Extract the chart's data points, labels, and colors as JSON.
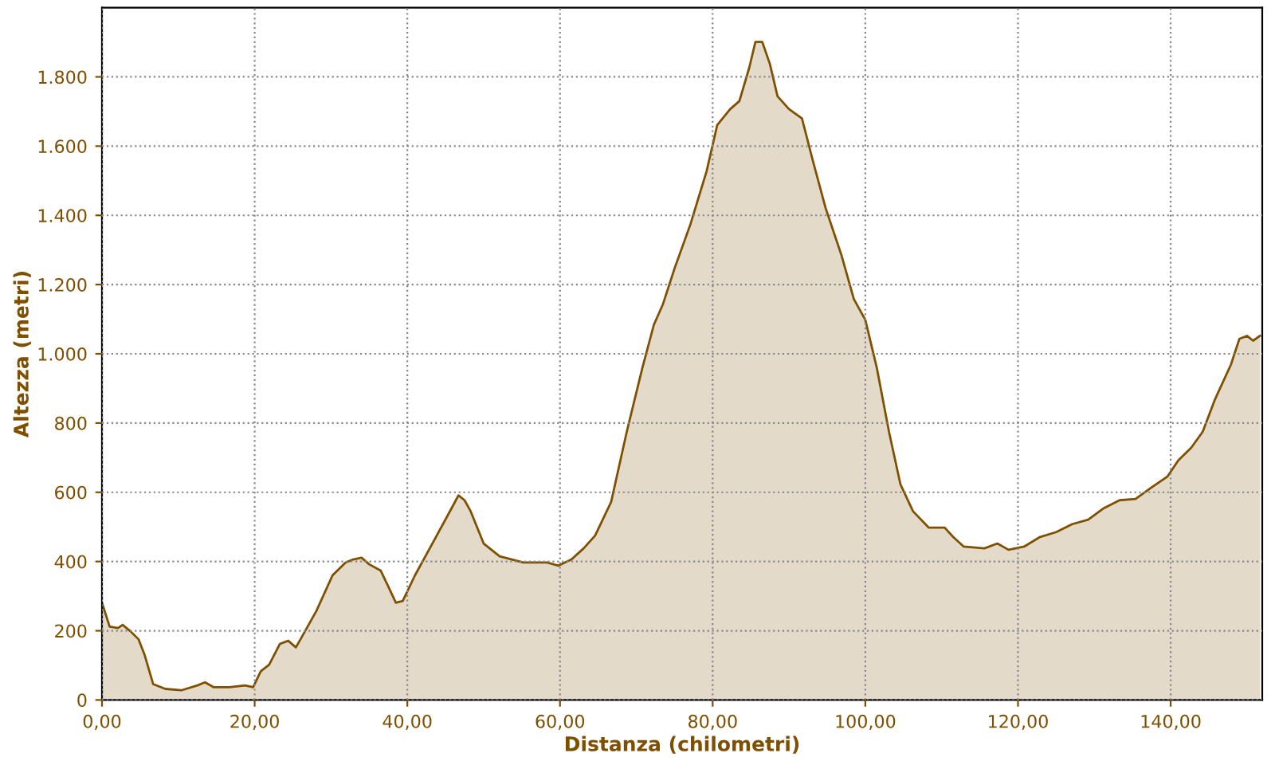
{
  "chart_data": {
    "type": "area",
    "xlabel": "Distanza (chilometri)",
    "ylabel": "Altezza (metri)",
    "x": [
      0,
      1.0,
      2.1,
      2.7,
      3.75,
      4.8,
      5.6,
      6.7,
      8.3,
      10.4,
      12.5,
      13.5,
      14.6,
      16.7,
      18.75,
      19.8,
      20.8,
      21.9,
      23.3,
      24.4,
      25.4,
      26,
      28.1,
      30.2,
      31.9,
      32.9,
      34,
      35,
      36.5,
      37.5,
      38.5,
      39.4,
      41,
      43.75,
      45.8,
      46.7,
      47.5,
      48.3,
      50,
      52.1,
      55.2,
      58.3,
      59.8,
      61.5,
      63.1,
      64.6,
      66.7,
      68.75,
      70.8,
      72.3,
      73.5,
      75,
      77.1,
      79.2,
      80.6,
      82.3,
      83.5,
      84.8,
      85.6,
      86.5,
      87.5,
      88.5,
      90,
      91.7,
      93.1,
      94.8,
      96.9,
      98.5,
      100,
      101.5,
      103.1,
      104.6,
      106.25,
      108.3,
      110.4,
      111.5,
      112.9,
      115.6,
      117.3,
      118.75,
      120.8,
      122.9,
      125,
      127.1,
      129.2,
      131.25,
      133.3,
      135.4,
      137.5,
      139.6,
      141,
      142.7,
      144.2,
      145.8,
      147.9,
      149,
      150,
      150.8,
      151.7
    ],
    "series": [
      {
        "color": "#7f5000",
        "values": [
          281,
          212,
          208,
          217,
          198,
          175,
          129,
          46,
          32,
          28,
          42,
          51,
          37,
          37,
          42,
          37,
          83,
          102,
          162,
          171,
          152,
          175,
          258,
          360,
          397,
          406,
          411,
          392,
          374,
          328,
          281,
          286,
          360,
          471,
          554,
          591,
          577,
          545,
          452,
          415,
          397,
          397,
          388,
          406,
          438,
          475,
          572,
          775,
          960,
          1084,
          1144,
          1246,
          1375,
          1527,
          1661,
          1707,
          1730,
          1827,
          1901,
          1901,
          1837,
          1744,
          1707,
          1680,
          1560,
          1421,
          1283,
          1158,
          1098,
          960,
          775,
          623,
          545,
          498,
          498,
          471,
          443,
          438,
          452,
          434,
          443,
          471,
          485,
          508,
          521,
          554,
          577,
          581,
          614,
          646,
          692,
          729,
          775,
          868,
          969,
          1043,
          1052,
          1038,
          1052
        ]
      }
    ],
    "xlim": [
      0,
      152
    ],
    "ylim": [
      0,
      2000
    ],
    "xticks": [
      {
        "value": 0,
        "label": "0,00"
      },
      {
        "value": 20,
        "label": "20,00"
      },
      {
        "value": 40,
        "label": "40,00"
      },
      {
        "value": 60,
        "label": "60,00"
      },
      {
        "value": 80,
        "label": "80,00"
      },
      {
        "value": 100,
        "label": "100,00"
      },
      {
        "value": 120,
        "label": "120,00"
      },
      {
        "value": 140,
        "label": "140,00"
      }
    ],
    "yticks": [
      0,
      200,
      400,
      600,
      800,
      {
        "value": 1000,
        "label": "1.000"
      },
      {
        "value": 1200,
        "label": "1.200"
      },
      {
        "value": 1400,
        "label": "1.400"
      },
      {
        "value": 1600,
        "label": "1.600"
      },
      {
        "value": 1800,
        "label": "1.800"
      }
    ],
    "grid": true,
    "legend": false
  }
}
